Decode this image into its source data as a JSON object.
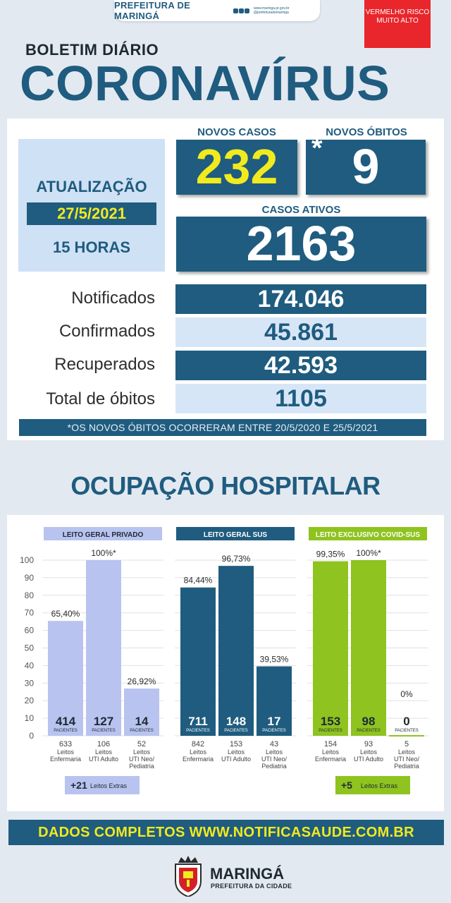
{
  "header": {
    "banner_title": "PREFEITURA DE MARINGÁ",
    "banner_site": "www.maringa.pr.gov.br @prefeiturademaringa",
    "risk_badge": "VERMELHO RISCO MUITO ALTO",
    "subtitle": "BOLETIM DIÁRIO",
    "headline": "CORONAVÍRUS"
  },
  "update": {
    "label": "ATUALIZAÇÃO",
    "date": "27/5/2021",
    "time": "15 HORAS"
  },
  "highlights": {
    "novos_casos_label": "NOVOS CASOS",
    "novos_casos": "232",
    "novos_obitos_label": "NOVOS ÓBITOS",
    "novos_obitos_mark": "*",
    "novos_obitos": "9",
    "casos_ativos_label": "CASOS ATIVOS",
    "casos_ativos": "2163"
  },
  "totals": [
    {
      "label": "Notificados",
      "value": "174.046"
    },
    {
      "label": "Confirmados",
      "value": "45.861"
    },
    {
      "label": "Recuperados",
      "value": "42.593"
    },
    {
      "label": "Total de óbitos",
      "value": "1105"
    }
  ],
  "footnote": "*OS NOVOS ÓBITOS OCORRERAM ENTRE 20/5/2020 E 25/5/2021",
  "section_title": "OCUPAÇÃO HOSPITALAR",
  "chart_data": {
    "type": "bar",
    "ylim": [
      0,
      100
    ],
    "yticks": [
      0,
      10,
      20,
      30,
      40,
      50,
      60,
      70,
      80,
      90,
      100
    ],
    "grid": true,
    "patients_unit": "PACIENTES",
    "colors": {
      "private": "#b9c3ef",
      "sus": "#1f5c7f",
      "covid": "#8fc31f"
    },
    "groups": [
      {
        "name": "LEITO GERAL PRIVADO",
        "color_key": "private",
        "bars": [
          {
            "pct_label": "65,40%",
            "value": 65.4,
            "patients": "414",
            "beds": "633",
            "category": "Leitos Enfermaria"
          },
          {
            "pct_label": "100%*",
            "value": 100,
            "patients": "127",
            "beds": "106",
            "category": "Leitos UTI Adulto"
          },
          {
            "pct_label": "26,92%",
            "value": 26.92,
            "patients": "14",
            "beds": "52",
            "category": "Leitos UTI Neo/ Pediatria"
          }
        ],
        "extras_count": "+21",
        "extras_label": "Leitos Extras"
      },
      {
        "name": "LEITO GERAL SUS",
        "color_key": "sus",
        "bars": [
          {
            "pct_label": "84,44%",
            "value": 84.44,
            "patients": "711",
            "beds": "842",
            "category": "Leitos Enfermaria"
          },
          {
            "pct_label": "96,73%",
            "value": 96.73,
            "patients": "148",
            "beds": "153",
            "category": "Leitos UTI Adulto"
          },
          {
            "pct_label": "39,53%",
            "value": 39.53,
            "patients": "17",
            "beds": "43",
            "category": "Leitos UTI Neo/ Pediatria"
          }
        ]
      },
      {
        "name": "LEITO EXCLUSIVO COVID-SUS",
        "color_key": "covid",
        "bars": [
          {
            "pct_label": "99,35%",
            "value": 99.35,
            "patients": "153",
            "beds": "154",
            "category": "Leitos Enfermaria"
          },
          {
            "pct_label": "100%*",
            "value": 100,
            "patients": "98",
            "beds": "93",
            "category": "Leitos UTI Adulto"
          },
          {
            "pct_label": "0%",
            "value": 0,
            "patients": "0",
            "beds": "5",
            "category": "Leitos UTI Neo/ Pediatria"
          }
        ],
        "extras_count": "+5",
        "extras_label": "Leitos Extras"
      }
    ]
  },
  "bottom_banner": "DADOS COMPLETOS  WWW.NOTIFICASAUDE.COM.BR",
  "footer": {
    "city": "MARINGÁ",
    "city_sub": "PREFEITURA DA CIDADE"
  }
}
